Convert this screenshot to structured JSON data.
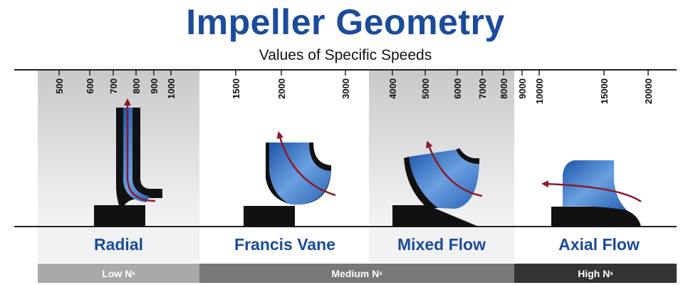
{
  "title": "Impeller Geometry",
  "subtitle": "Values of Specific Speeds",
  "ticks": [
    {
      "value": "500"
    },
    {
      "value": "600"
    },
    {
      "value": "700"
    },
    {
      "value": "800"
    },
    {
      "value": "900"
    },
    {
      "value": "1000"
    },
    {
      "value": "1500"
    },
    {
      "value": "2000"
    },
    {
      "value": "3000"
    },
    {
      "value": "4000"
    },
    {
      "value": "5000"
    },
    {
      "value": "6000"
    },
    {
      "value": "7000"
    },
    {
      "value": "8000"
    },
    {
      "value": "9000"
    },
    {
      "value": "10000"
    },
    {
      "value": "15000"
    },
    {
      "value": "20000"
    }
  ],
  "impeller_types": [
    {
      "label": "Radial"
    },
    {
      "label": "Francis Vane"
    },
    {
      "label": "Mixed Flow"
    },
    {
      "label": "Axial Flow"
    }
  ],
  "speed_bands": [
    {
      "label": "Low N",
      "sub": "s",
      "color": "#a9a9a9"
    },
    {
      "label": "Medium N",
      "sub": "s",
      "color": "#787878"
    },
    {
      "label": "High N",
      "sub": "s",
      "color": "#333333"
    }
  ],
  "colors": {
    "title": "#1b4b9b",
    "impeller_blue": "#3a78c8",
    "flow_arrow": "#8b1a2b",
    "shroud": "#111111"
  }
}
